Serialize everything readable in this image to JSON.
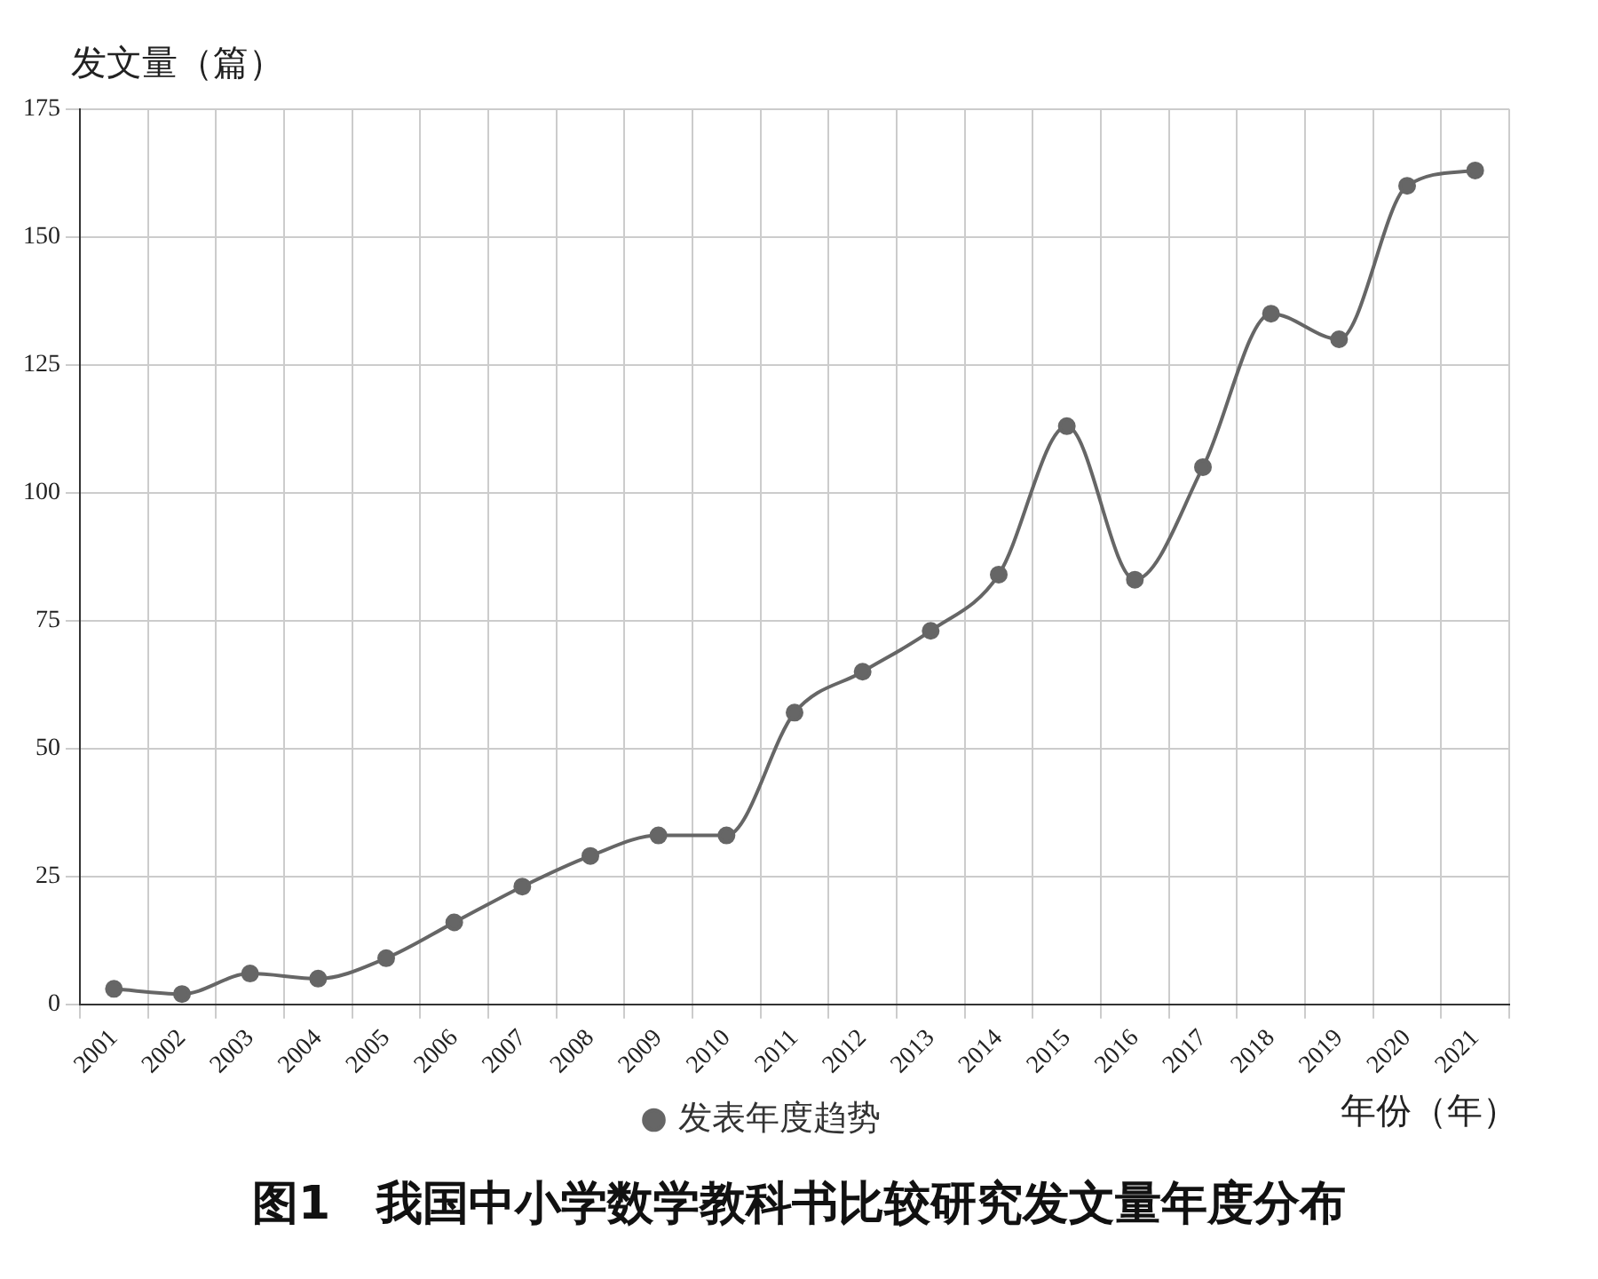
{
  "chart_data": {
    "type": "line",
    "title": "图1　我国中小学数学教科书比较研究发文量年度分布",
    "xlabel": "年份（年）",
    "ylabel": "发文量（篇）",
    "categories": [
      "2001",
      "2002",
      "2003",
      "2004",
      "2005",
      "2006",
      "2007",
      "2008",
      "2009",
      "2010",
      "2011",
      "2012",
      "2013",
      "2014",
      "2015",
      "2016",
      "2017",
      "2018",
      "2019",
      "2020",
      "2021"
    ],
    "series": [
      {
        "name": "发表年度趋势",
        "color": "#666666",
        "values": [
          3,
          2,
          6,
          5,
          9,
          16,
          23,
          29,
          33,
          33,
          57,
          65,
          73,
          84,
          113,
          83,
          105,
          135,
          130,
          160,
          163
        ]
      }
    ],
    "ylim": [
      0,
      175
    ],
    "yticks": [
      0,
      25,
      50,
      75,
      100,
      125,
      150,
      175
    ],
    "grid": true,
    "legend": "bottom",
    "marker": "circle",
    "line_style": "solid"
  }
}
